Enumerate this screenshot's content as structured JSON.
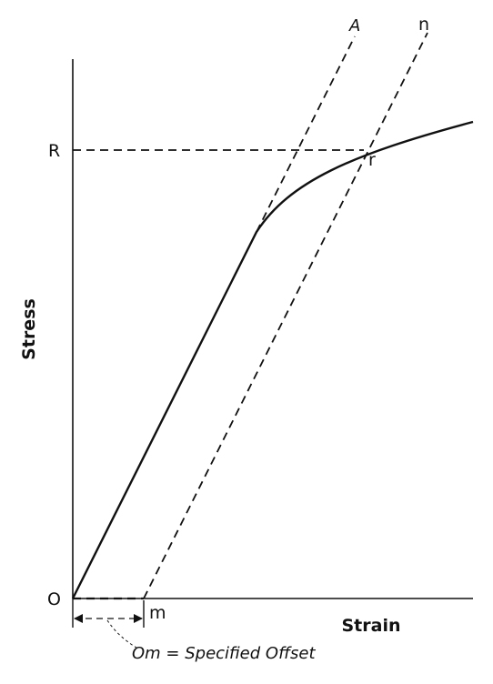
{
  "labels": {
    "origin": "O",
    "yield_stress": "R",
    "intersection": "r",
    "offset_point": "m",
    "elastic_line_end": "A",
    "offset_line_end": "n",
    "y_axis": "Stress",
    "x_axis": "Strain",
    "offset_note": "Om = Specified Offset"
  },
  "colors": {
    "line": "#111111",
    "background": "#ffffff"
  }
}
